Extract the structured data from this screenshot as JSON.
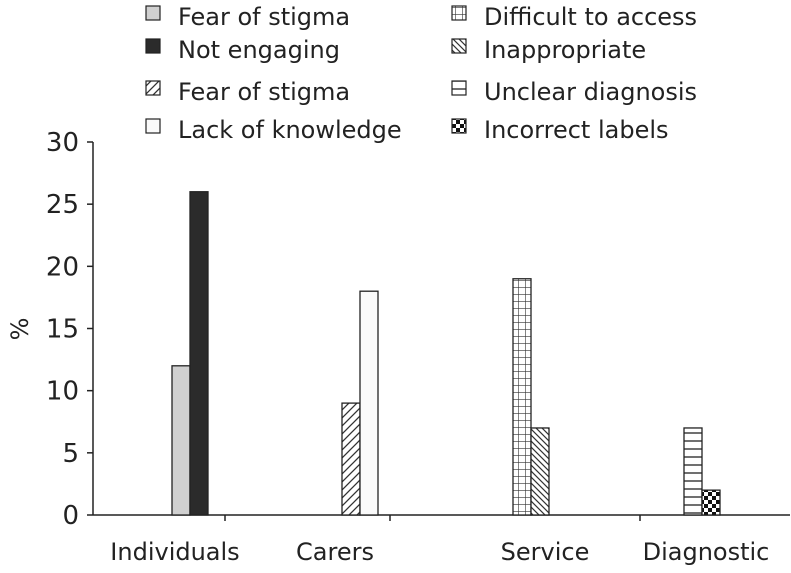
{
  "chart_data": {
    "type": "bar",
    "title": "",
    "xlabel": "",
    "ylabel": "%",
    "ylim": [
      0,
      30
    ],
    "yticks": [
      0,
      5,
      10,
      15,
      20,
      25,
      30
    ],
    "grid": false,
    "legend_position": "top",
    "categories": [
      "Individuals",
      "Carers",
      "Service",
      "Diagnostic"
    ],
    "groups": [
      {
        "category": "Individuals",
        "bars": [
          {
            "series": "Fear of stigma",
            "value": 0,
            "pattern": "none",
            "color": "#ffffff"
          },
          {
            "series": "Fear of stigma",
            "value": 12,
            "pattern": "solid-light-grey",
            "color": "#d0d0d0"
          },
          {
            "series": "Not engaging",
            "value": 26,
            "pattern": "solid-dark",
            "color": "#2b2b2b"
          }
        ]
      },
      {
        "category": "Carers",
        "bars": [
          {
            "series": "Fear of stigma",
            "value": 9,
            "pattern": "diagonal-hatch",
            "color": "#ffffff"
          },
          {
            "series": "Lack of knowledge",
            "value": 18,
            "pattern": "white",
            "color": "#fafafa"
          }
        ]
      },
      {
        "category": "Service",
        "bars": [
          {
            "series": "Difficult to access",
            "value": 19,
            "pattern": "grid",
            "color": "#ffffff"
          },
          {
            "series": "Inappropriate",
            "value": 7,
            "pattern": "diagonal-hatch-dense",
            "color": "#ffffff"
          }
        ]
      },
      {
        "category": "Diagnostic",
        "bars": [
          {
            "series": "Unclear diagnosis",
            "value": 7,
            "pattern": "horizontal-lines",
            "color": "#ffffff"
          },
          {
            "series": "Incorrect labels",
            "value": 2,
            "pattern": "checker",
            "color": "#ffffff"
          }
        ]
      }
    ],
    "legend": [
      {
        "label": "Fear of stigma",
        "pattern": "solid-light-grey"
      },
      {
        "label": "Not engaging",
        "pattern": "solid-dark"
      },
      {
        "label": "Fear of stigma",
        "pattern": "diagonal-hatch"
      },
      {
        "label": "Lack of knowledge",
        "pattern": "white"
      },
      {
        "label": "Difficult to access",
        "pattern": "grid"
      },
      {
        "label": "Inappropriate",
        "pattern": "diagonal-hatch-dense"
      },
      {
        "label": "Unclear diagnosis",
        "pattern": "horizontal-lines"
      },
      {
        "label": "Incorrect labels",
        "pattern": "checker"
      }
    ]
  }
}
